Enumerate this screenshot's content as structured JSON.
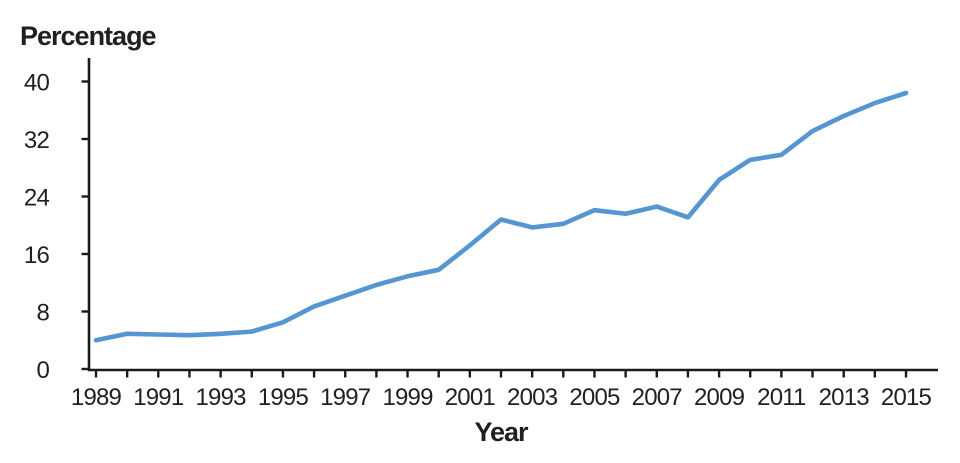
{
  "chart_data": {
    "type": "line",
    "title": "Percentage",
    "xlabel": "Year",
    "ylabel": "Percentage",
    "x": [
      1989,
      1990,
      1991,
      1992,
      1993,
      1994,
      1995,
      1996,
      1997,
      1998,
      1999,
      2000,
      2001,
      2002,
      2003,
      2004,
      2005,
      2006,
      2007,
      2008,
      2009,
      2010,
      2011,
      2012,
      2013,
      2014,
      2015
    ],
    "series": [
      {
        "name": "Percentage",
        "values": [
          4.0,
          4.9,
          4.8,
          4.7,
          4.9,
          5.2,
          6.5,
          8.7,
          10.2,
          11.7,
          12.9,
          13.8,
          17.2,
          20.8,
          19.7,
          20.2,
          22.1,
          21.6,
          22.6,
          21.1,
          26.3,
          29.1,
          29.8,
          33.1,
          35.2,
          37.0,
          38.4
        ]
      }
    ],
    "ylim": [
      0,
      40
    ],
    "yticks": [
      0,
      8,
      16,
      24,
      32,
      40
    ],
    "xtick_labels": [
      "1989",
      "1991",
      "1993",
      "1995",
      "1997",
      "1999",
      "2001",
      "2003",
      "2005",
      "2007",
      "2009",
      "2011",
      "2013",
      "2015"
    ],
    "grid": false,
    "legend": "none",
    "colors": {
      "line": "#5596d2",
      "axis": "#1a1a1a",
      "text": "#231f20"
    }
  }
}
